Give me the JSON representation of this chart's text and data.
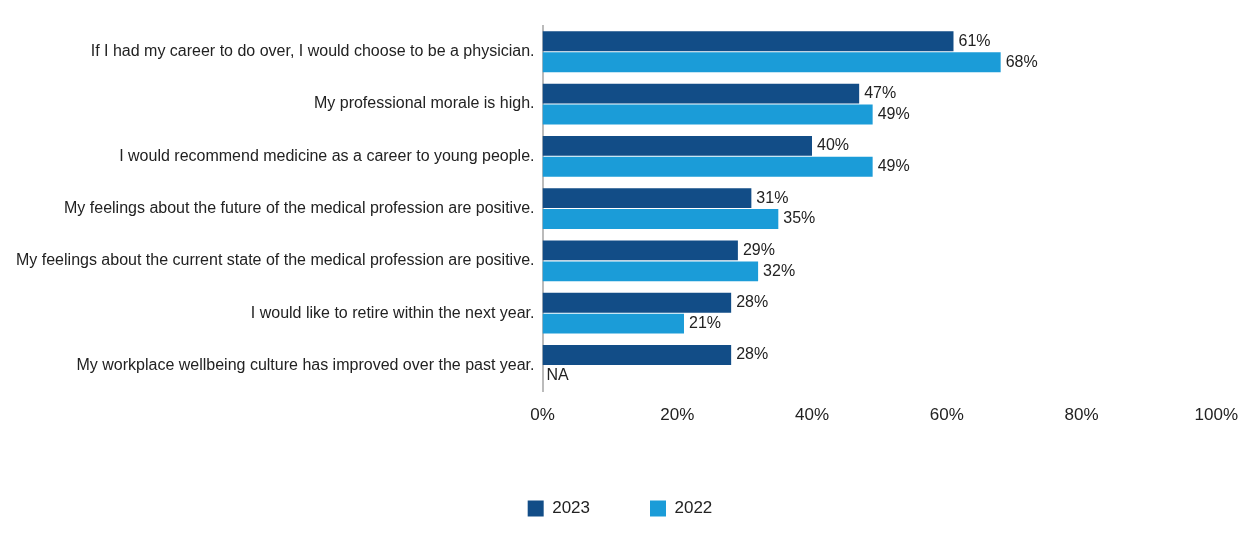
{
  "chart_data": {
    "type": "bar",
    "orientation": "horizontal",
    "categories": [
      "If I had my career to do over, I would choose to be a physician.",
      "My professional morale is high.",
      "I would recommend medicine as a career to young people.",
      "My feelings about the future of the medical profession are positive.",
      "My feelings about the current state of the medical profession are positive.",
      "I would like to retire within the next year.",
      "My workplace wellbeing culture has improved over the past year."
    ],
    "series": [
      {
        "name": "2023",
        "color": "#124d87",
        "values": [
          61,
          47,
          40,
          31,
          29,
          28,
          28
        ],
        "value_labels": [
          "61%",
          "47%",
          "40%",
          "31%",
          "29%",
          "28%",
          "28%"
        ]
      },
      {
        "name": "2022",
        "color": "#1b9cd8",
        "values": [
          68,
          49,
          49,
          35,
          32,
          21,
          null
        ],
        "value_labels": [
          "68%",
          "49%",
          "49%",
          "35%",
          "32%",
          "21%",
          "NA"
        ]
      }
    ],
    "xlim": [
      0,
      100
    ],
    "xticks": [
      {
        "value": 0,
        "label": "0%"
      },
      {
        "value": 20,
        "label": "20%"
      },
      {
        "value": 40,
        "label": "40%"
      },
      {
        "value": 60,
        "label": "60%"
      },
      {
        "value": 80,
        "label": "80%"
      },
      {
        "value": 100,
        "label": "100%"
      }
    ],
    "grid": false,
    "legend": "bottom"
  }
}
